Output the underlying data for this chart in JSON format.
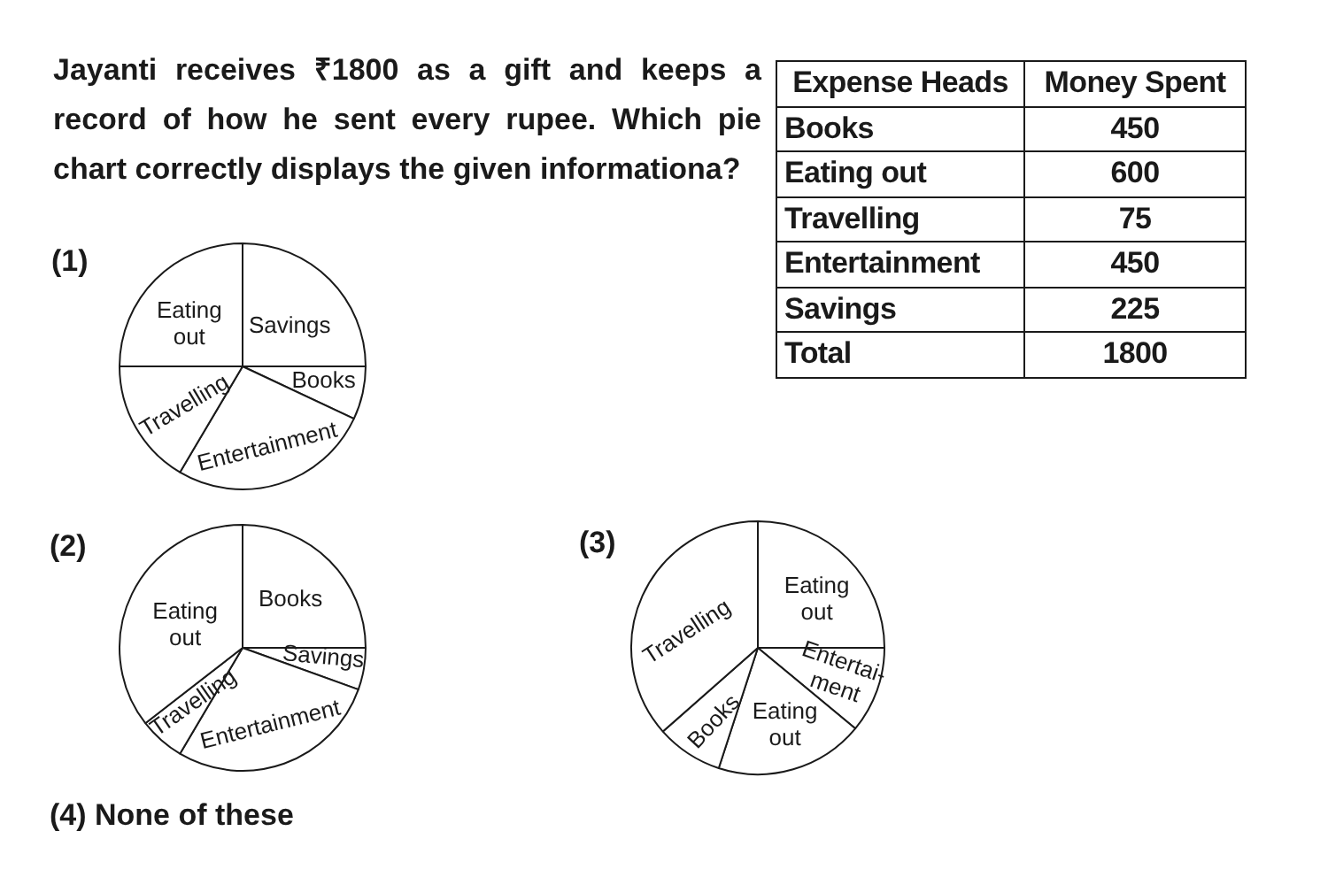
{
  "chart_data": [
    {
      "type": "other",
      "title": "Jayanti receives ₹1800 as a gift and keeps a record of how he sent every rupee. Which pie chart correctly displays the given informationa?",
      "xlabel": "Expense Heads",
      "ylabel": "Money Spent",
      "categories": [
        "Books",
        "Eating out",
        "Travelling",
        "Entertainment",
        "Savings",
        "Total"
      ],
      "values": [
        450,
        600,
        75,
        450,
        225,
        1800
      ],
      "data_labels": true
    },
    {
      "type": "pie",
      "title": "(1)",
      "categories": [
        "Savings",
        "Books",
        "Entertainment",
        "Travelling",
        "Eating out"
      ],
      "values": [
        25,
        7,
        26.5,
        16.5,
        25
      ],
      "colors": [
        "#ffffff",
        "#ffffff",
        "#ffffff",
        "#ffffff",
        "#ffffff"
      ]
    },
    {
      "type": "pie",
      "title": "(2)",
      "categories": [
        "Books",
        "Savings",
        "Entertainment",
        "Travelling",
        "Eating out"
      ],
      "values": [
        25,
        5.5,
        28,
        6,
        35.5
      ],
      "colors": [
        "#ffffff",
        "#ffffff",
        "#ffffff",
        "#ffffff",
        "#ffffff"
      ]
    },
    {
      "type": "pie",
      "title": "(3)",
      "categories": [
        "Eating out",
        "Entertai-\nment",
        "Eating out",
        "Books",
        "Travelling"
      ],
      "values": [
        25,
        11,
        19,
        8.5,
        36.5
      ],
      "colors": [
        "#ffffff",
        "#ffffff",
        "#ffffff",
        "#ffffff",
        "#ffffff"
      ]
    },
    {
      "type": "other",
      "title": "(4) None of these"
    }
  ]
}
